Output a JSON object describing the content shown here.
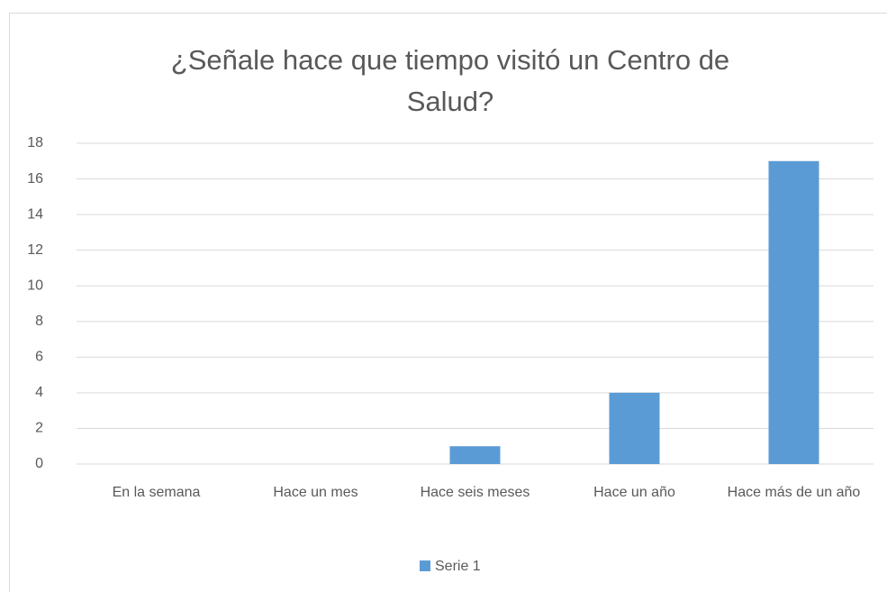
{
  "chart_data": {
    "type": "bar",
    "title": "¿Señale hace que tiempo visitó un Centro de Salud?",
    "categories": [
      "En la semana",
      "Hace un mes",
      "Hace seis meses",
      "Hace un año",
      "Hace más de un año"
    ],
    "series": [
      {
        "name": "Serie 1",
        "color": "#5b9bd5",
        "values": [
          0,
          0,
          1,
          4,
          17
        ]
      }
    ],
    "ylim": [
      0,
      18
    ],
    "yticks": [
      0,
      2,
      4,
      6,
      8,
      10,
      12,
      14,
      16,
      18
    ],
    "grid": true,
    "legend": "bottom"
  }
}
